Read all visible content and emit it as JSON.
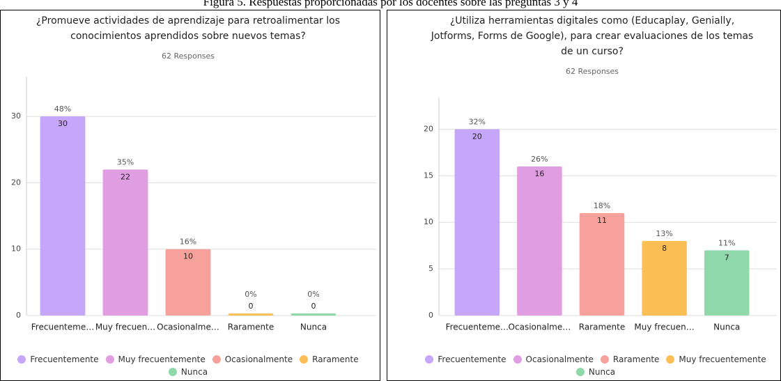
{
  "caption": "Figura 5. Respuestas proporcionadas por los docentes sobre las preguntas 3 y 4",
  "chart_data": [
    {
      "type": "bar",
      "title": [
        "¿Promueve actividades de aprendizaje para retroalimentar los",
        "conocimientos aprendidos sobre nuevos temas?"
      ],
      "subtitle": "62 Responses",
      "categories": [
        "Frecuenteme…",
        "Muy frecuen…",
        "Ocasionalme…",
        "Raramente",
        "Nunca"
      ],
      "values": [
        30,
        22,
        10,
        0,
        0
      ],
      "percent_labels": [
        "48%",
        "35%",
        "16%",
        "0%",
        "0%"
      ],
      "colors": [
        "#c6a6f8",
        "#e19de2",
        "#f7a19c",
        "#fbbf55",
        "#8fd8aa"
      ],
      "legend": [
        "Frecuentemente",
        "Muy frecuentemente",
        "Ocasionalmente",
        "Raramente",
        "Nunca"
      ],
      "ylim": [
        0,
        36
      ],
      "yticks": [
        0,
        10,
        20,
        30
      ],
      "grid": true
    },
    {
      "type": "bar",
      "title": [
        "¿Utiliza herramientas digitales como (Educaplay, Genially,",
        "Jotforms, Forms de Google), para crear evaluaciones de los temas",
        "de un curso?"
      ],
      "subtitle": "62 Responses",
      "categories": [
        "Frecuenteme…",
        "Ocasionalme…",
        "Raramente",
        "Muy frecuen…",
        "Nunca"
      ],
      "values": [
        20,
        16,
        11,
        8,
        7
      ],
      "percent_labels": [
        "32%",
        "26%",
        "18%",
        "13%",
        "11%"
      ],
      "colors": [
        "#c6a6f8",
        "#e19de2",
        "#f7a19c",
        "#fbbf55",
        "#8fd8aa"
      ],
      "legend": [
        "Frecuentemente",
        "Ocasionalmente",
        "Raramente",
        "Muy frecuentemente",
        "Nunca"
      ],
      "ylim": [
        0,
        23.4
      ],
      "yticks": [
        0,
        5,
        10,
        15,
        20
      ],
      "grid": true
    }
  ]
}
